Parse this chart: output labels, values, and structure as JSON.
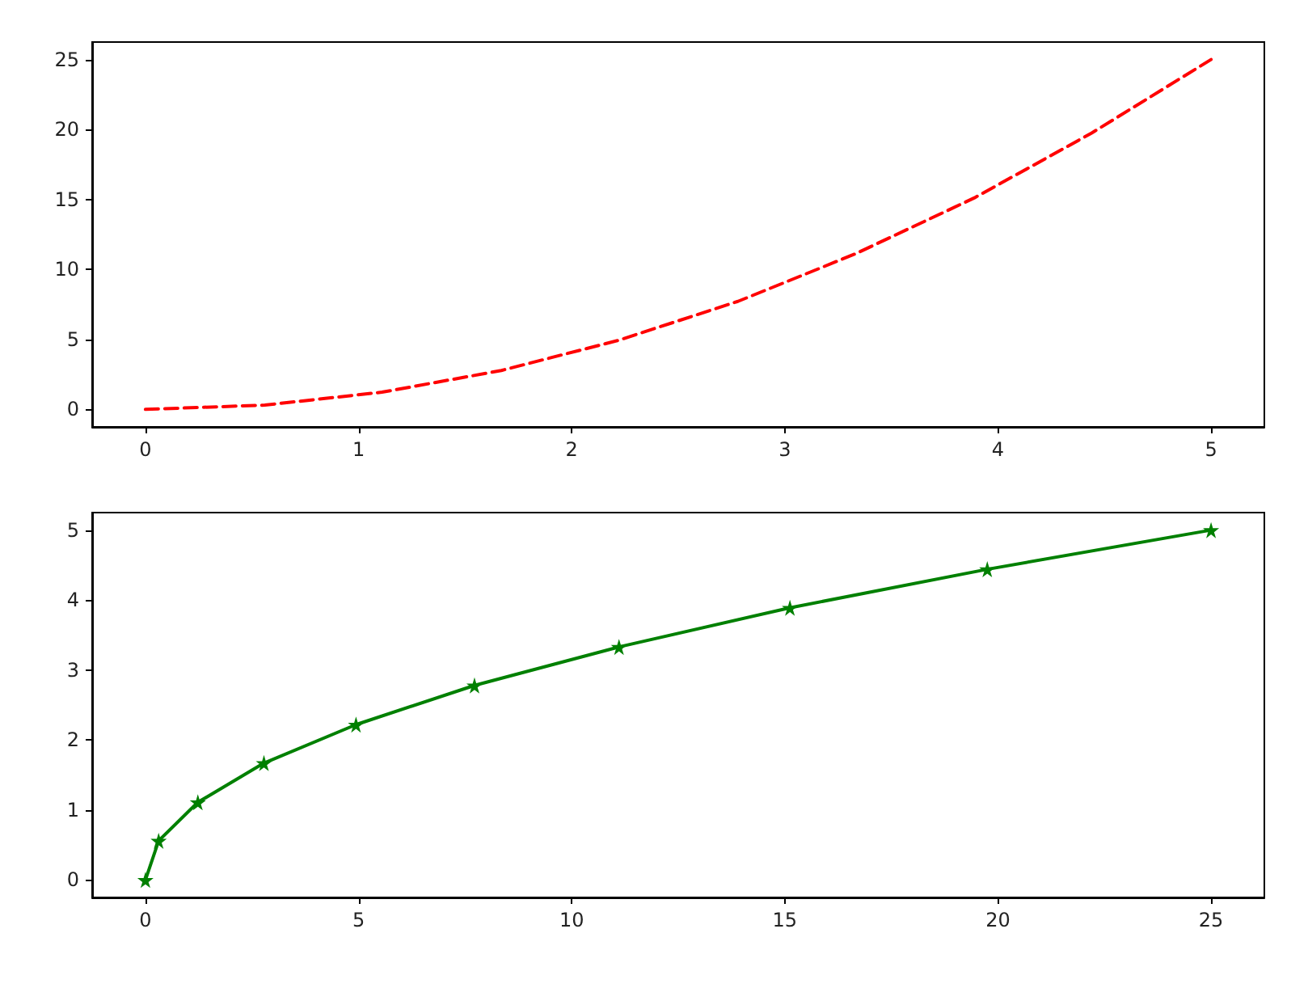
{
  "chart_data": [
    {
      "type": "line",
      "x": [
        0,
        0.56,
        1.11,
        1.67,
        2.22,
        2.78,
        3.33,
        3.89,
        4.44,
        5
      ],
      "series": [
        {
          "color": "#ff0000",
          "values": [
            0,
            0.31,
            1.23,
            2.78,
            4.94,
            7.72,
            11.11,
            15.12,
            19.75,
            25
          ],
          "line_style": "dashed",
          "marker": "none"
        }
      ],
      "xlim": [
        -0.25,
        5.25
      ],
      "ylim": [
        -1.25,
        26.25
      ],
      "xticks": [
        0,
        1,
        2,
        3,
        4,
        5
      ],
      "yticks": [
        0,
        5,
        10,
        15,
        20,
        25
      ]
    },
    {
      "type": "line",
      "x": [
        0,
        0.31,
        1.23,
        2.78,
        4.94,
        7.72,
        11.11,
        15.12,
        19.75,
        25
      ],
      "series": [
        {
          "color": "#008000",
          "values": [
            0,
            0.56,
            1.11,
            1.67,
            2.22,
            2.78,
            3.33,
            3.89,
            4.44,
            5
          ],
          "line_style": "solid",
          "marker": "star"
        }
      ],
      "xlim": [
        -1.25,
        26.25
      ],
      "ylim": [
        -0.25,
        5.25
      ],
      "xticks": [
        0,
        5,
        10,
        15,
        20,
        25
      ],
      "yticks": [
        0,
        1,
        2,
        3,
        4,
        5
      ]
    }
  ]
}
